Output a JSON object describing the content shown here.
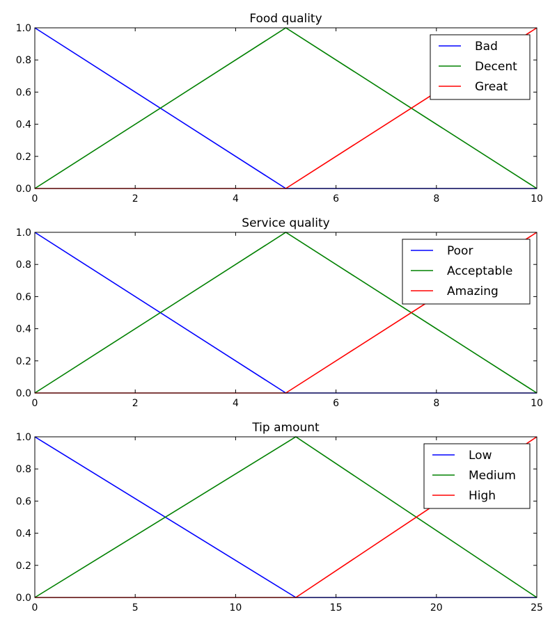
{
  "chart_data": [
    {
      "type": "line",
      "title": "Food quality",
      "xlabel": "",
      "ylabel": "",
      "xlim": [
        0,
        10
      ],
      "ylim": [
        0,
        1
      ],
      "xticks": [
        "0",
        "2",
        "4",
        "6",
        "8",
        "10"
      ],
      "yticks": [
        "0.0",
        "0.2",
        "0.4",
        "0.6",
        "0.8",
        "1.0"
      ],
      "legend_position": "top-right",
      "grid": false,
      "series": [
        {
          "name": "Bad",
          "color": "#0000ff",
          "x": [
            0,
            5,
            10
          ],
          "y": [
            1,
            0,
            0
          ]
        },
        {
          "name": "Decent",
          "color": "#008000",
          "x": [
            0,
            5,
            10
          ],
          "y": [
            0,
            1,
            0
          ]
        },
        {
          "name": "Great",
          "color": "#ff0000",
          "x": [
            0,
            5,
            10
          ],
          "y": [
            0,
            0,
            1
          ]
        }
      ]
    },
    {
      "type": "line",
      "title": "Service quality",
      "xlabel": "",
      "ylabel": "",
      "xlim": [
        0,
        10
      ],
      "ylim": [
        0,
        1
      ],
      "xticks": [
        "0",
        "2",
        "4",
        "6",
        "8",
        "10"
      ],
      "yticks": [
        "0.0",
        "0.2",
        "0.4",
        "0.6",
        "0.8",
        "1.0"
      ],
      "legend_position": "top-right",
      "grid": false,
      "series": [
        {
          "name": "Poor",
          "color": "#0000ff",
          "x": [
            0,
            5,
            10
          ],
          "y": [
            1,
            0,
            0
          ]
        },
        {
          "name": "Acceptable",
          "color": "#008000",
          "x": [
            0,
            5,
            10
          ],
          "y": [
            0,
            1,
            0
          ]
        },
        {
          "name": "Amazing",
          "color": "#ff0000",
          "x": [
            0,
            5,
            10
          ],
          "y": [
            0,
            0,
            1
          ]
        }
      ]
    },
    {
      "type": "line",
      "title": "Tip amount",
      "xlabel": "",
      "ylabel": "",
      "xlim": [
        0,
        25
      ],
      "ylim": [
        0,
        1
      ],
      "xticks": [
        "0",
        "5",
        "10",
        "15",
        "20",
        "25"
      ],
      "yticks": [
        "0.0",
        "0.2",
        "0.4",
        "0.6",
        "0.8",
        "1.0"
      ],
      "legend_position": "top-right",
      "grid": false,
      "series": [
        {
          "name": "Low",
          "color": "#0000ff",
          "x": [
            0,
            13,
            25
          ],
          "y": [
            1,
            0,
            0
          ]
        },
        {
          "name": "Medium",
          "color": "#008000",
          "x": [
            0,
            13,
            25
          ],
          "y": [
            0,
            1,
            0
          ]
        },
        {
          "name": "High",
          "color": "#ff0000",
          "x": [
            0,
            13,
            25
          ],
          "y": [
            0,
            0,
            1
          ]
        }
      ]
    }
  ]
}
